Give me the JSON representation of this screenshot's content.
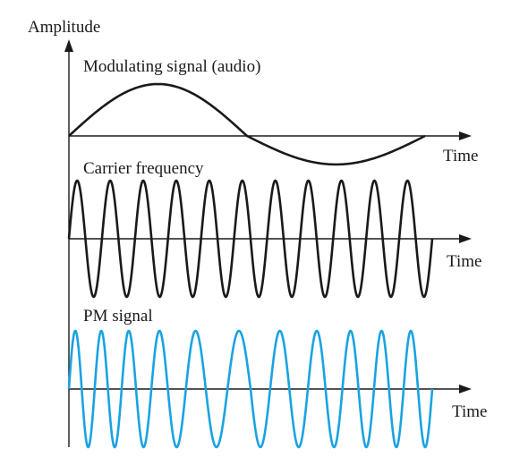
{
  "labels": {
    "y_axis": "Amplitude",
    "modulating": "Modulating signal (audio)",
    "carrier": "Carrier frequency",
    "pm": "PM signal",
    "time_1": "Time",
    "time_2": "Time",
    "time_3": "Time"
  },
  "colors": {
    "axis": "#1a1a1a",
    "modulating_wave": "#1a1a1a",
    "carrier_wave": "#1a1a1a",
    "pm_wave": "#1aa3e0"
  },
  "icons": {
    "y_arrow": "arrow-up-icon",
    "time_arrow": "arrow-right-icon"
  }
}
